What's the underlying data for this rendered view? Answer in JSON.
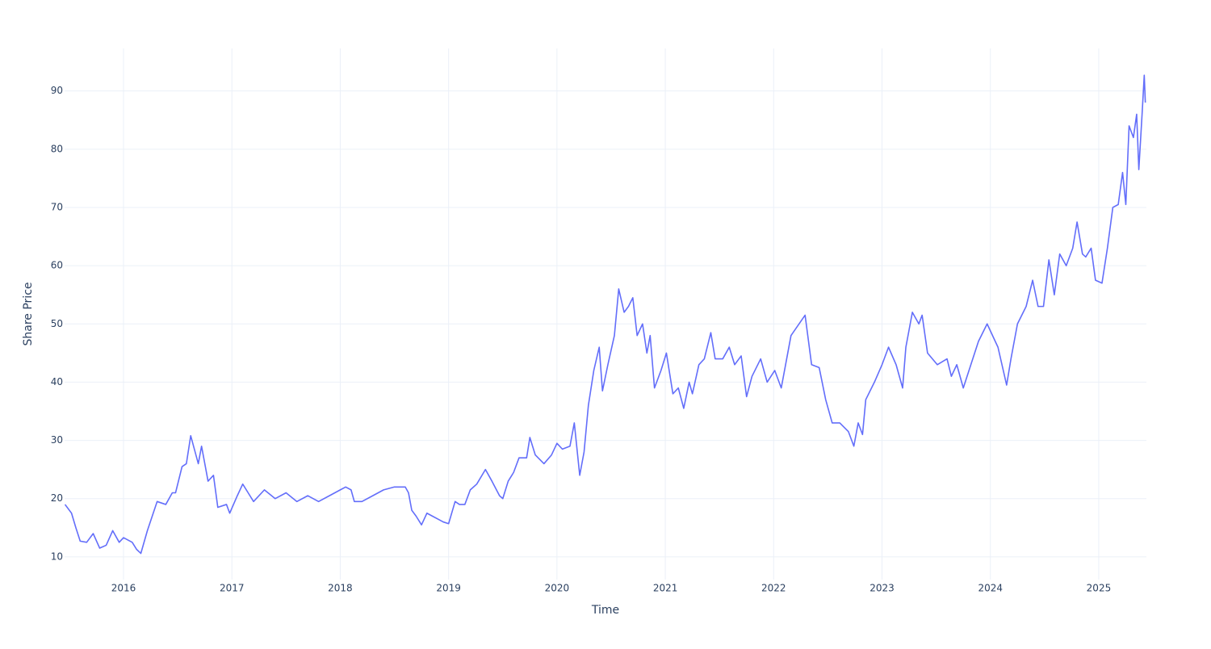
{
  "chart_data": {
    "type": "line",
    "x_label": "Time",
    "y_label": "Share Price",
    "color": "#636efa",
    "grid": true,
    "xlim": [
      2015.456,
      2025.44
    ],
    "ylim": [
      6.1,
      97.3
    ],
    "xticks": [
      2016,
      2017,
      2018,
      2019,
      2020,
      2021,
      2022,
      2023,
      2024,
      2025
    ],
    "yticks": [
      10,
      20,
      30,
      40,
      50,
      60,
      70,
      80,
      90
    ],
    "x": [
      2015.46,
      2015.52,
      2015.56,
      2015.6,
      2015.66,
      2015.72,
      2015.78,
      2015.84,
      2015.9,
      2015.96,
      2016.0,
      2016.08,
      2016.12,
      2016.16,
      2016.22,
      2016.31,
      2016.39,
      2016.45,
      2016.48,
      2016.54,
      2016.58,
      2016.62,
      2016.69,
      2016.72,
      2016.78,
      2016.83,
      2016.87,
      2016.95,
      2016.98,
      2017.05,
      2017.1,
      2017.15,
      2017.2,
      2017.3,
      2017.4,
      2017.5,
      2017.6,
      2017.7,
      2017.8,
      2017.9,
      2018.0,
      2018.05,
      2018.1,
      2018.13,
      2018.2,
      2018.3,
      2018.4,
      2018.5,
      2018.6,
      2018.63,
      2018.66,
      2018.7,
      2018.75,
      2018.8,
      2018.85,
      2018.9,
      2018.95,
      2019.0,
      2019.06,
      2019.1,
      2019.15,
      2019.2,
      2019.26,
      2019.34,
      2019.4,
      2019.47,
      2019.5,
      2019.55,
      2019.6,
      2019.65,
      2019.72,
      2019.75,
      2019.8,
      2019.88,
      2019.95,
      2020.0,
      2020.05,
      2020.12,
      2020.16,
      2020.21,
      2020.25,
      2020.29,
      2020.34,
      2020.39,
      2020.42,
      2020.47,
      2020.53,
      2020.57,
      2020.62,
      2020.66,
      2020.7,
      2020.74,
      2020.79,
      2020.83,
      2020.86,
      2020.9,
      2020.96,
      2021.01,
      2021.07,
      2021.12,
      2021.17,
      2021.22,
      2021.25,
      2021.31,
      2021.36,
      2021.42,
      2021.46,
      2021.53,
      2021.59,
      2021.64,
      2021.7,
      2021.75,
      2021.8,
      2021.88,
      2021.94,
      2022.01,
      2022.07,
      2022.12,
      2022.16,
      2022.29,
      2022.35,
      2022.42,
      2022.48,
      2022.54,
      2022.61,
      2022.69,
      2022.74,
      2022.78,
      2022.82,
      2022.85,
      2022.93,
      2023.0,
      2023.06,
      2023.13,
      2023.19,
      2023.22,
      2023.28,
      2023.34,
      2023.37,
      2023.42,
      2023.51,
      2023.6,
      2023.64,
      2023.69,
      2023.75,
      2023.82,
      2023.89,
      2023.97,
      2024.07,
      2024.15,
      2024.19,
      2024.25,
      2024.33,
      2024.39,
      2024.44,
      2024.49,
      2024.54,
      2024.59,
      2024.64,
      2024.7,
      2024.76,
      2024.8,
      2024.85,
      2024.88,
      2024.93,
      2024.97,
      2025.03,
      2025.08,
      2025.13,
      2025.18,
      2025.22,
      2025.25,
      2025.28,
      2025.32,
      2025.35,
      2025.37,
      2025.4,
      2025.42,
      2025.43
    ],
    "values": [
      19,
      17.5,
      15,
      12.7,
      12.5,
      14,
      11.5,
      12,
      14.5,
      12.5,
      13.3,
      12.5,
      11.3,
      10.6,
      14.5,
      19.5,
      19,
      21,
      21,
      25.5,
      26,
      30.8,
      26,
      29,
      23,
      24,
      18.5,
      19,
      17.5,
      20.5,
      22.5,
      21,
      19.5,
      21.5,
      20,
      21,
      19.5,
      20.5,
      19.5,
      20.5,
      21.5,
      22,
      21.5,
      19.5,
      19.5,
      20.5,
      21.5,
      22,
      22,
      21,
      18,
      17,
      15.5,
      17.5,
      17,
      16.5,
      16,
      15.7,
      19.5,
      19,
      19,
      21.5,
      22.5,
      25,
      23,
      20.5,
      20,
      23,
      24.5,
      27,
      27,
      30.5,
      27.5,
      26,
      27.5,
      29.5,
      28.5,
      29,
      33,
      24,
      28,
      36,
      42,
      46,
      38.5,
      43,
      48,
      56,
      52,
      53,
      54.5,
      48,
      50,
      45,
      48,
      39,
      42,
      45,
      38,
      39,
      35.5,
      40,
      38,
      43,
      44,
      48.5,
      44,
      44,
      46,
      43,
      44.5,
      37.5,
      41,
      44,
      40,
      42,
      39,
      44,
      48,
      51.5,
      43,
      42.5,
      37,
      33,
      33,
      31.5,
      29,
      33,
      31,
      37,
      40,
      43,
      46,
      43,
      39,
      46,
      52,
      50,
      51.5,
      45,
      43,
      44,
      41,
      43,
      39,
      43,
      47,
      50,
      46,
      39.5,
      44,
      50,
      53,
      57.5,
      53,
      53,
      61,
      55,
      62,
      60,
      63,
      67.5,
      62,
      61.5,
      63,
      57.5,
      57,
      63,
      70,
      70.5,
      76,
      70.5,
      84,
      82,
      86,
      76.5,
      86,
      92.7,
      88
    ]
  }
}
